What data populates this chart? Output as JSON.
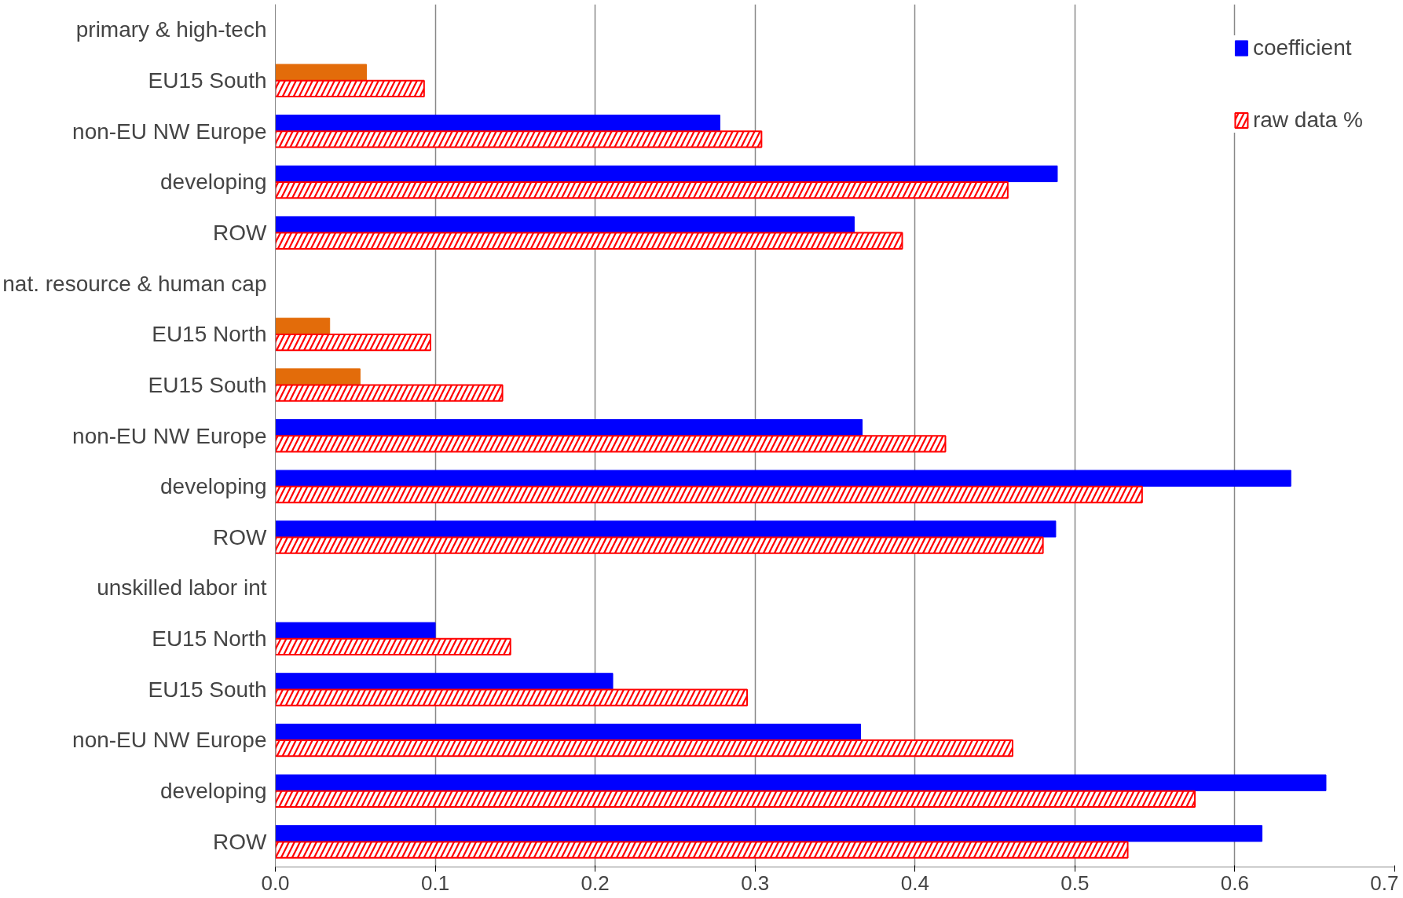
{
  "chart_data": {
    "type": "bar",
    "orientation": "horizontal",
    "categories": [
      "primary & high-tech",
      "EU15 South",
      "non-EU NW Europe",
      "developing",
      "ROW",
      "nat. resource & human cap",
      "EU15 North",
      "EU15 South",
      "non-EU NW Europe",
      "developing",
      "ROW",
      "unskilled labor int",
      "EU15 North",
      "EU15 South",
      "non-EU NW Europe",
      "developing",
      "ROW"
    ],
    "series": [
      {
        "name": "coefficient",
        "color": "#0000ff",
        "colors": [
          "#0000ff",
          "#e36c0a",
          "#0000ff",
          "#0000ff",
          "#0000ff",
          "#0000ff",
          "#e36c0a",
          "#e36c0a",
          "#0000ff",
          "#0000ff",
          "#0000ff",
          "#0000ff",
          "#0000ff",
          "#0000ff",
          "#0000ff",
          "#0000ff",
          "#0000ff"
        ],
        "values": [
          null,
          0.057,
          0.278,
          0.489,
          0.362,
          null,
          0.034,
          0.053,
          0.367,
          0.635,
          0.488,
          null,
          0.1,
          0.211,
          0.366,
          0.657,
          0.617
        ]
      },
      {
        "name": "raw data %",
        "color": "#ff0000",
        "values": [
          null,
          0.093,
          0.304,
          0.458,
          0.392,
          null,
          0.097,
          0.142,
          0.419,
          0.542,
          0.48,
          null,
          0.147,
          0.295,
          0.461,
          0.575,
          0.533
        ]
      }
    ],
    "xlim": [
      0,
      0.7
    ],
    "xticks": [
      {
        "value": 0,
        "label": "0.0"
      },
      0.1,
      0.2,
      0.3,
      0.4,
      0.5,
      0.6,
      0.7
    ],
    "grid": "x",
    "legend": "top right"
  }
}
